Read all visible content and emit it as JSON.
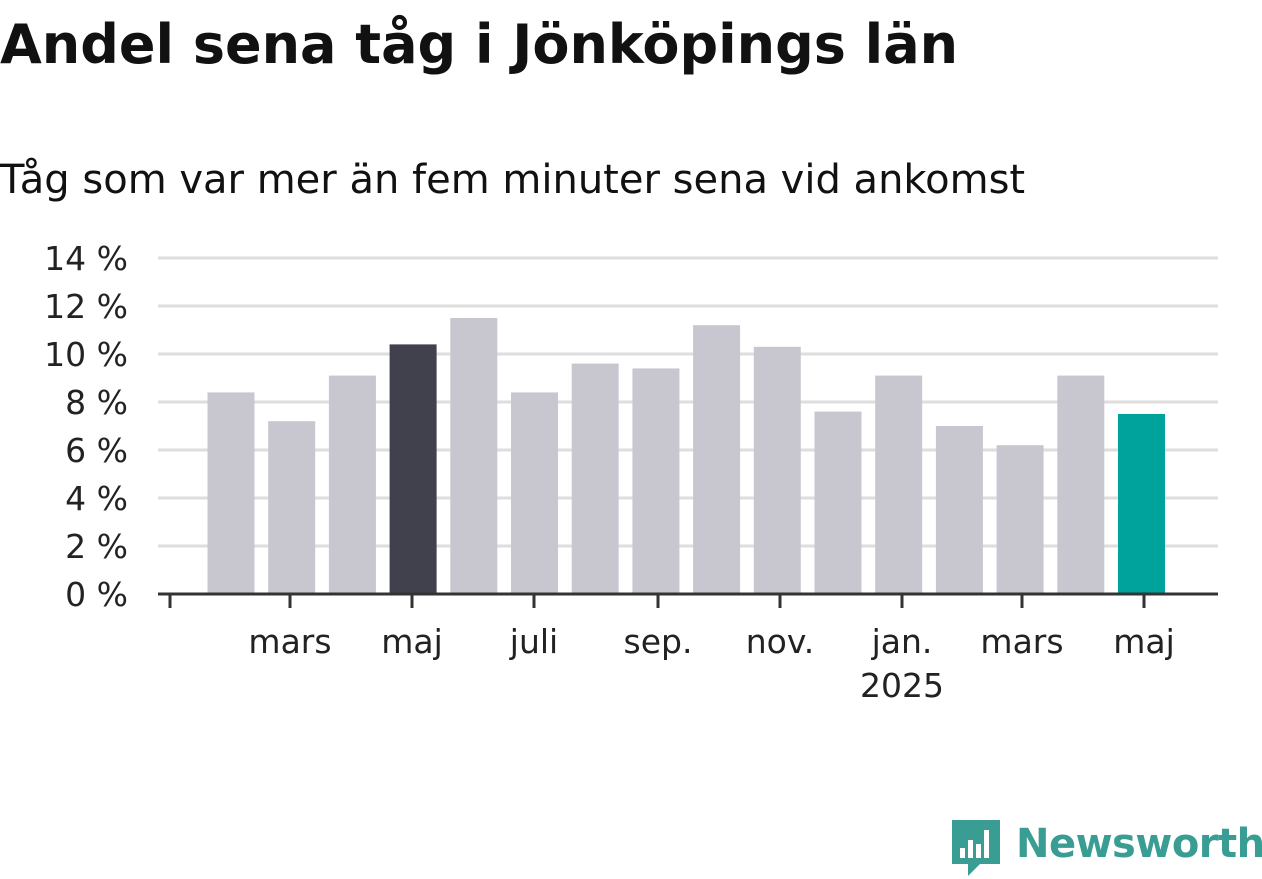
{
  "title": "Andel sena tåg i Jönköpings län",
  "subtitle": "Tåg som var mer än fem minuter sena vid ankomst",
  "brand": {
    "name": "Newsworthy",
    "icon": "newsworthy-logo-icon",
    "color": "#3a9d94"
  },
  "colors": {
    "default_bar": "#c8c7d0",
    "highlight_bar": "#41404d",
    "latest_bar": "#00a39b",
    "grid": "#dedede",
    "axis": "#333333"
  },
  "chart_data": {
    "type": "bar",
    "title": "Andel sena tåg i Jönköpings län",
    "subtitle": "Tåg som var mer än fem minuter sena vid ankomst",
    "xlabel": "",
    "ylabel": "",
    "ylim": [
      0,
      14
    ],
    "y_ticks": [
      0,
      2,
      4,
      6,
      8,
      10,
      12,
      14
    ],
    "y_tick_labels": [
      "0 %",
      "2 %",
      "4 %",
      "6 %",
      "8 %",
      "10 %",
      "12 %",
      "14 %"
    ],
    "grid": true,
    "categories": [
      "",
      "mars",
      "",
      "maj",
      "",
      "juli",
      "",
      "sep.",
      "",
      "nov.",
      "",
      "jan. 2025",
      "",
      "mars",
      "",
      "maj"
    ],
    "x_tick_labels": [
      {
        "index": 1,
        "label": "mars"
      },
      {
        "index": 3,
        "label": "maj"
      },
      {
        "index": 5,
        "label": "juli"
      },
      {
        "index": 7,
        "label": "sep."
      },
      {
        "index": 9,
        "label": "nov."
      },
      {
        "index": 11,
        "label": "jan.",
        "sublabel": "2025"
      },
      {
        "index": 13,
        "label": "mars"
      },
      {
        "index": 15,
        "label": "maj"
      }
    ],
    "values": [
      8.4,
      7.2,
      9.1,
      10.4,
      11.5,
      8.4,
      9.6,
      9.4,
      11.2,
      10.3,
      7.6,
      9.1,
      7.0,
      6.2,
      9.1,
      7.5
    ],
    "bar_colors": [
      "default",
      "default",
      "default",
      "highlight",
      "default",
      "default",
      "default",
      "default",
      "default",
      "default",
      "default",
      "default",
      "default",
      "default",
      "default",
      "latest"
    ]
  }
}
